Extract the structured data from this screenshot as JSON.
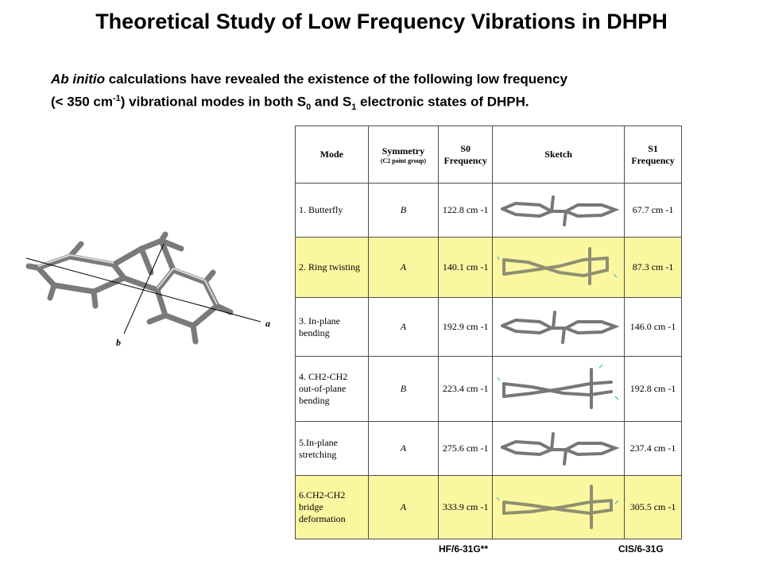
{
  "title": "Theoretical Study of Low Frequency Vibrations in DHPH",
  "intro": {
    "italic": "Ab initio",
    "line1_rest": " calculations have revealed the existence of the following low frequency",
    "line2_a": "(< 350 cm",
    "line2_sup": "-1",
    "line2_b": ") vibrational modes in both S",
    "line2_sub0": "0",
    "line2_c": " and S",
    "line2_sub1": "1",
    "line2_d": " electronic states of DHPH."
  },
  "molecule": {
    "axis_a": "a",
    "axis_b": "b"
  },
  "table": {
    "headers": {
      "mode": "Mode",
      "symmetry": "Symmetry",
      "symmetry_sub": "(C2 point group)",
      "s0": "S0",
      "s0_line2": "Frequency",
      "sketch": "Sketch",
      "s1": "S1",
      "s1_line2": "Frequency"
    },
    "rows": [
      {
        "mode": "1. Butterfly",
        "symmetry": "B",
        "s0": "122.8 cm -1",
        "s1": "67.7 cm -1"
      },
      {
        "mode": "2. Ring twisting",
        "symmetry": "A",
        "s0": "140.1 cm -1",
        "s1": "87.3 cm -1"
      },
      {
        "mode": "3. In-plane bending",
        "symmetry": "A",
        "s0": "192.9 cm -1",
        "s1": "146.0 cm -1"
      },
      {
        "mode": "4. CH2-CH2 out-of-plane bending",
        "symmetry": "B",
        "s0": "223.4 cm -1",
        "s1": "192.8 cm -1"
      },
      {
        "mode": "5.In-plane stretching",
        "symmetry": "A",
        "s0": "275.6 cm -1",
        "s1": "237.4 cm -1"
      },
      {
        "mode": "6.CH2-CH2 bridge deformation",
        "symmetry": "A",
        "s0": "333.9 cm -1",
        "s1": "305.5 cm -1"
      }
    ]
  },
  "footer": {
    "left": "HF/6-31G**",
    "right": "CIS/6-31G"
  },
  "colors": {
    "highlight": "#fbf7a1",
    "border": "#4d4d4d"
  }
}
